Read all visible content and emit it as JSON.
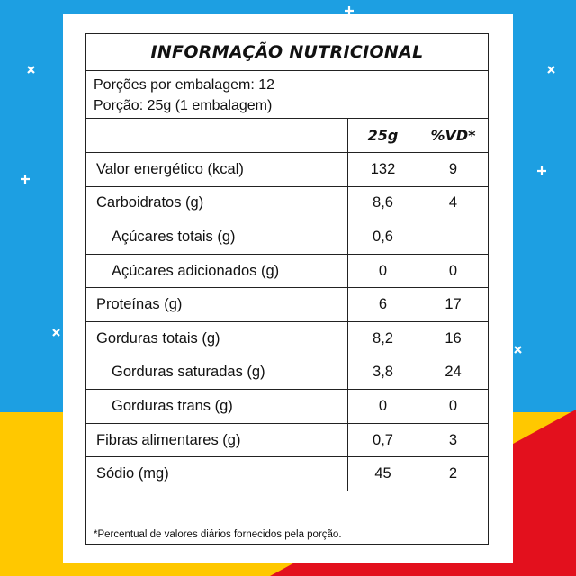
{
  "title": "INFORMAÇÃO NUTRICIONAL",
  "servings": [
    "Porções por embalagem: 12",
    "Porção: 25g (1 embalagem)"
  ],
  "header": {
    "amount": "25g",
    "dv": "%VD*"
  },
  "rows": [
    {
      "label": "Valor energético (kcal)",
      "amount": "132",
      "dv": "9"
    },
    {
      "label": "Carboidratos (g)",
      "amount": "8,6",
      "dv": "4"
    },
    {
      "label": "Açúcares totais (g)",
      "amount": "0,6",
      "indent": true
    },
    {
      "label": "Açúcares adicionados (g)",
      "amount": "0",
      "dv": "0",
      "indent": true
    },
    {
      "label": "Proteínas (g)",
      "amount": "6",
      "dv": "17"
    },
    {
      "label": "Gorduras totais (g)",
      "amount": "8,2",
      "dv": "16"
    },
    {
      "label": "Gorduras saturadas (g)",
      "amount": "3,8",
      "dv": "24",
      "indent": true
    },
    {
      "label": "Gorduras trans (g)",
      "amount": "0",
      "dv": "0",
      "indent": true
    },
    {
      "label": "Fibras alimentares (g)",
      "amount": "0,7",
      "dv": "3"
    },
    {
      "label": "Sódio (mg)",
      "amount": "45",
      "dv": "2"
    }
  ],
  "footnote": "*Percentual de valores diários fornecidos pela porção."
}
